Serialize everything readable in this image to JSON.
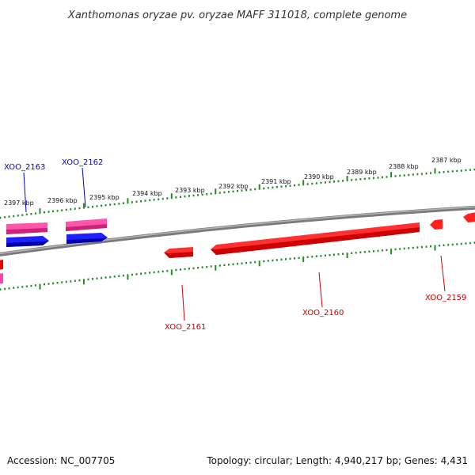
{
  "title": "Xanthomonas oryzae pv. oryzae MAFF 311018, complete genome",
  "footer": {
    "accession": "Accession: NC_007705",
    "topology": "Topology: circular; Length: 4,940,217 bp; Genes: 4,431"
  },
  "colors": {
    "backbone": "#888888",
    "tick": "#228B22",
    "forward_label": "#0000cc",
    "reverse_label": "#cc0000",
    "gene_blue": "#0000ee",
    "gene_pink": "#ee3399",
    "gene_red": "#ee0000"
  },
  "scale_ticks": [
    {
      "label": "2397 kbp"
    },
    {
      "label": "2396 kbp"
    },
    {
      "label": "2395 kbp"
    },
    {
      "label": "2394 kbp"
    },
    {
      "label": "2393 kbp"
    },
    {
      "label": "2392 kbp"
    },
    {
      "label": "2391 kbp"
    },
    {
      "label": "2390 kbp"
    },
    {
      "label": "2389 kbp"
    },
    {
      "label": "2388 kbp"
    },
    {
      "label": "2387 kbp"
    }
  ],
  "gene_labels": [
    {
      "name": "XOO_2163",
      "strand": "forward"
    },
    {
      "name": "XOO_2162",
      "strand": "forward"
    },
    {
      "name": "XOO_2161",
      "strand": "reverse"
    },
    {
      "name": "XOO_2160",
      "strand": "reverse"
    },
    {
      "name": "XOO_2159",
      "strand": "reverse"
    }
  ]
}
